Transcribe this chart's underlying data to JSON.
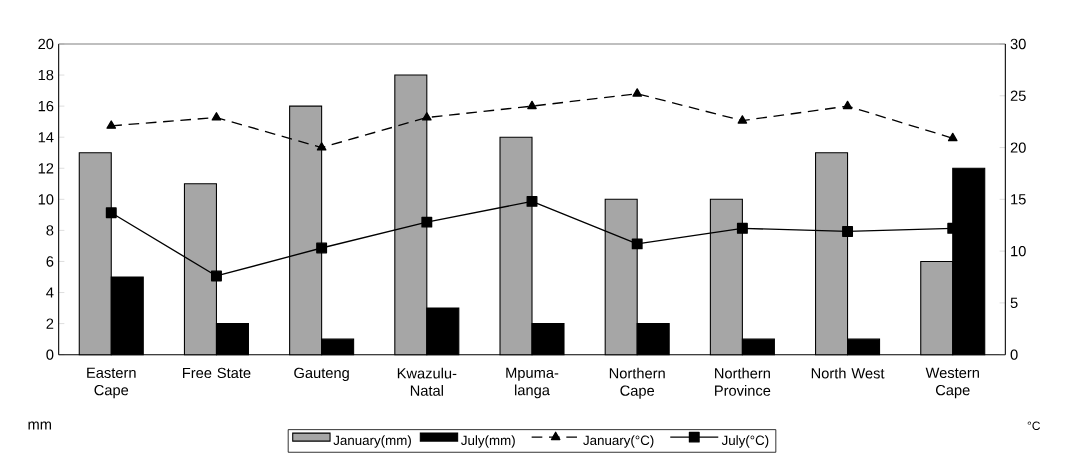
{
  "chart_data": {
    "type": "bar",
    "categories": [
      "Eastern Cape",
      "Free State",
      "Gauteng",
      "Kwazulu-Natal",
      "Mpuma-langa",
      "Northern Cape",
      "Northern Province",
      "North West",
      "Western Cape"
    ],
    "series": [
      {
        "name": "January(mm)",
        "color": "#a6a6a6",
        "values": [
          13,
          11,
          16,
          18,
          14,
          10,
          10,
          13,
          6
        ]
      },
      {
        "name": "July(mm)",
        "color": "#000000",
        "values": [
          5,
          2,
          1,
          3,
          2,
          2,
          1,
          1,
          12
        ]
      },
      {
        "name": "January(°C)",
        "type": "line",
        "axis": "y2",
        "color": "#000000",
        "marker": "triangle",
        "line_style": "dashed",
        "values": [
          22.1,
          22.9,
          20.0,
          22.9,
          24.0,
          25.2,
          22.6,
          24.0,
          20.9
        ]
      },
      {
        "name": "July(°C)",
        "type": "line",
        "axis": "y2",
        "color": "#000000",
        "marker": "square",
        "line_style": "solid",
        "values": [
          13.7,
          7.6,
          10.3,
          12.8,
          14.8,
          10.7,
          12.2,
          11.9,
          12.2
        ]
      }
    ],
    "ylabel": "mm",
    "y2label": "°C",
    "ylim": [
      0,
      20
    ],
    "yticks": [
      0,
      2,
      4,
      6,
      8,
      10,
      12,
      14,
      16,
      18,
      20
    ],
    "y2lim": [
      0,
      30
    ],
    "y2ticks": [
      0,
      5,
      10,
      15,
      20,
      25,
      30
    ],
    "grid": false,
    "legend": "bottom"
  }
}
